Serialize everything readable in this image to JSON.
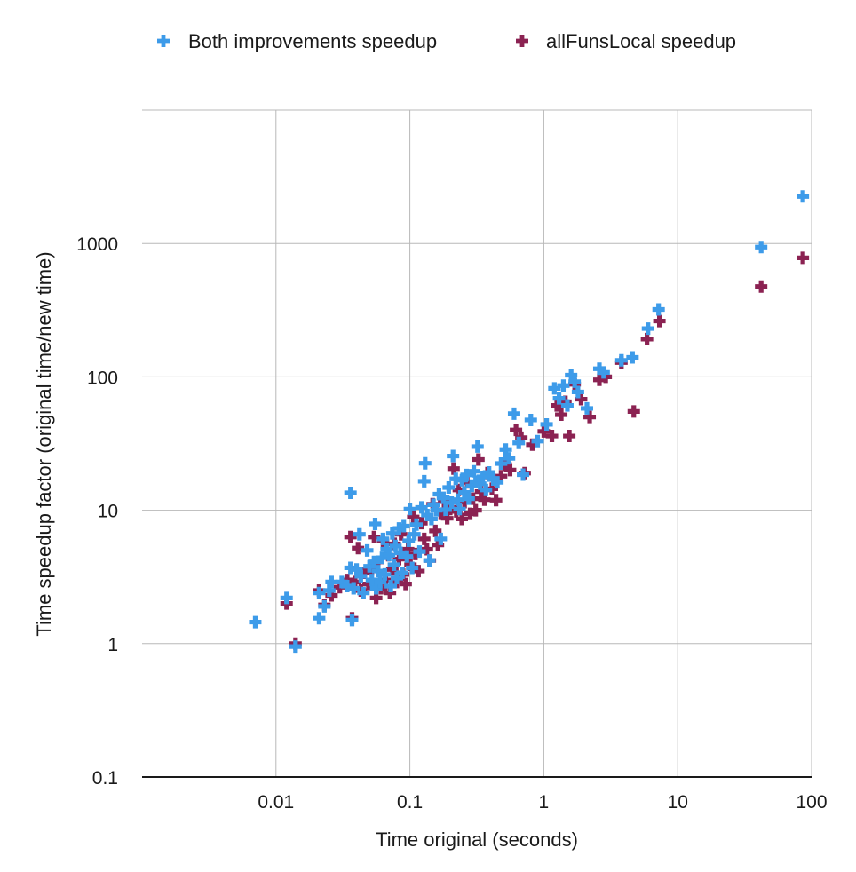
{
  "chart_data": {
    "type": "scatter",
    "title": "",
    "xlabel": "Time original (seconds)",
    "ylabel": "Time speedup factor (original time/new time)",
    "xscale": "log",
    "yscale": "log",
    "xlim": [
      0.001,
      100
    ],
    "ylim": [
      0.1,
      10000
    ],
    "x_ticks": [
      {
        "value": 0.01,
        "label": "0.01"
      },
      {
        "value": 0.1,
        "label": "0.1"
      },
      {
        "value": 1,
        "label": "1"
      },
      {
        "value": 10,
        "label": "10"
      },
      {
        "value": 100,
        "label": "100"
      }
    ],
    "y_ticks": [
      {
        "value": 0.1,
        "label": "0.1"
      },
      {
        "value": 1,
        "label": "1"
      },
      {
        "value": 10,
        "label": "10"
      },
      {
        "value": 100,
        "label": "100"
      },
      {
        "value": 1000,
        "label": "1000"
      }
    ],
    "grid": true,
    "legend_position": "top",
    "marker": "plus",
    "series": [
      {
        "name": "Both improvements speedup",
        "color": "#3d9be9",
        "points": [
          [
            0.007,
            1.45
          ],
          [
            0.012,
            2.2
          ],
          [
            0.014,
            0.95
          ],
          [
            0.021,
            1.55
          ],
          [
            0.021,
            2.4
          ],
          [
            0.023,
            1.9
          ],
          [
            0.025,
            2.5
          ],
          [
            0.026,
            2.9
          ],
          [
            0.031,
            2.9
          ],
          [
            0.034,
            2.7
          ],
          [
            0.036,
            3.7
          ],
          [
            0.036,
            13.5
          ],
          [
            0.037,
            1.5
          ],
          [
            0.038,
            2.6
          ],
          [
            0.04,
            3.6
          ],
          [
            0.042,
            6.6
          ],
          [
            0.043,
            3.2
          ],
          [
            0.045,
            2.4
          ],
          [
            0.048,
            5.0
          ],
          [
            0.05,
            3.8
          ],
          [
            0.052,
            3.0
          ],
          [
            0.054,
            4.1
          ],
          [
            0.055,
            7.9
          ],
          [
            0.056,
            2.6
          ],
          [
            0.058,
            3.5
          ],
          [
            0.06,
            2.9
          ],
          [
            0.062,
            4.4
          ],
          [
            0.063,
            6.1
          ],
          [
            0.065,
            3.3
          ],
          [
            0.067,
            5.1
          ],
          [
            0.07,
            4.6
          ],
          [
            0.072,
            2.7
          ],
          [
            0.074,
            6.7
          ],
          [
            0.076,
            3.9
          ],
          [
            0.078,
            5.4
          ],
          [
            0.08,
            3.1
          ],
          [
            0.083,
            7.3
          ],
          [
            0.085,
            4.8
          ],
          [
            0.088,
            3.4
          ],
          [
            0.09,
            7.6
          ],
          [
            0.095,
            4.5
          ],
          [
            0.098,
            5.9
          ],
          [
            0.1,
            10.2
          ],
          [
            0.104,
            3.7
          ],
          [
            0.108,
            6.6
          ],
          [
            0.112,
            7.8
          ],
          [
            0.118,
            4.9
          ],
          [
            0.122,
            10.5
          ],
          [
            0.128,
            16.5
          ],
          [
            0.13,
            22.5
          ],
          [
            0.135,
            9.2
          ],
          [
            0.14,
            4.2
          ],
          [
            0.145,
            8.6
          ],
          [
            0.15,
            11.0
          ],
          [
            0.158,
            10.0
          ],
          [
            0.165,
            13.2
          ],
          [
            0.17,
            6.1
          ],
          [
            0.178,
            12.4
          ],
          [
            0.185,
            10.1
          ],
          [
            0.195,
            14.8
          ],
          [
            0.205,
            11.4
          ],
          [
            0.21,
            25.5
          ],
          [
            0.22,
            17.2
          ],
          [
            0.228,
            12.0
          ],
          [
            0.235,
            10.2
          ],
          [
            0.245,
            16.8
          ],
          [
            0.255,
            13.6
          ],
          [
            0.265,
            18.4
          ],
          [
            0.275,
            12.2
          ],
          [
            0.29,
            15.2
          ],
          [
            0.3,
            19.6
          ],
          [
            0.31,
            16.4
          ],
          [
            0.32,
            30.0
          ],
          [
            0.335,
            15.8
          ],
          [
            0.35,
            17.8
          ],
          [
            0.37,
            14.2
          ],
          [
            0.39,
            19.2
          ],
          [
            0.42,
            17.0
          ],
          [
            0.45,
            16.2
          ],
          [
            0.48,
            22.4
          ],
          [
            0.52,
            28.5
          ],
          [
            0.55,
            24.5
          ],
          [
            0.6,
            53.0
          ],
          [
            0.65,
            32.0
          ],
          [
            0.7,
            18.5
          ],
          [
            0.8,
            47.5
          ],
          [
            0.9,
            33.0
          ],
          [
            1.05,
            44.0
          ],
          [
            1.2,
            82.0
          ],
          [
            1.3,
            69.0
          ],
          [
            1.4,
            86.0
          ],
          [
            1.5,
            61.0
          ],
          [
            1.6,
            103.0
          ],
          [
            1.7,
            92.0
          ],
          [
            1.8,
            77.0
          ],
          [
            2.1,
            58.0
          ],
          [
            2.6,
            115.0
          ],
          [
            2.8,
            108.0
          ],
          [
            3.8,
            133.0
          ],
          [
            4.6,
            140.0
          ],
          [
            6.0,
            230.0
          ],
          [
            7.2,
            320.0
          ],
          [
            42.0,
            940.0
          ],
          [
            86.0,
            2250.0
          ]
        ]
      },
      {
        "name": "allFunsLocal speedup",
        "color": "#8b2252",
        "points": [
          [
            0.012,
            2.0
          ],
          [
            0.014,
            1.0
          ],
          [
            0.021,
            2.5
          ],
          [
            0.023,
            1.95
          ],
          [
            0.026,
            2.3
          ],
          [
            0.03,
            2.65
          ],
          [
            0.034,
            3.0
          ],
          [
            0.036,
            6.3
          ],
          [
            0.037,
            1.55
          ],
          [
            0.039,
            2.9
          ],
          [
            0.041,
            5.2
          ],
          [
            0.043,
            2.5
          ],
          [
            0.046,
            3.4
          ],
          [
            0.049,
            2.8
          ],
          [
            0.052,
            3.6
          ],
          [
            0.054,
            6.3
          ],
          [
            0.056,
            2.2
          ],
          [
            0.058,
            4.1
          ],
          [
            0.061,
            2.6
          ],
          [
            0.063,
            5.9
          ],
          [
            0.066,
            3.0
          ],
          [
            0.069,
            4.6
          ],
          [
            0.071,
            2.4
          ],
          [
            0.074,
            3.6
          ],
          [
            0.077,
            5.6
          ],
          [
            0.08,
            2.9
          ],
          [
            0.083,
            4.3
          ],
          [
            0.086,
            6.6
          ],
          [
            0.089,
            3.3
          ],
          [
            0.093,
            2.8
          ],
          [
            0.097,
            5.1
          ],
          [
            0.101,
            3.9
          ],
          [
            0.106,
            8.9
          ],
          [
            0.11,
            4.7
          ],
          [
            0.116,
            3.5
          ],
          [
            0.122,
            8.0
          ],
          [
            0.128,
            6.1
          ],
          [
            0.134,
            5.1
          ],
          [
            0.141,
            4.2
          ],
          [
            0.148,
            11.1
          ],
          [
            0.155,
            7.0
          ],
          [
            0.162,
            5.5
          ],
          [
            0.17,
            9.4
          ],
          [
            0.18,
            11.6
          ],
          [
            0.19,
            8.7
          ],
          [
            0.2,
            10.2
          ],
          [
            0.212,
            20.5
          ],
          [
            0.222,
            9.8
          ],
          [
            0.232,
            14.2
          ],
          [
            0.244,
            8.6
          ],
          [
            0.256,
            11.5
          ],
          [
            0.268,
            16.2
          ],
          [
            0.282,
            9.4
          ],
          [
            0.296,
            12.2
          ],
          [
            0.31,
            10.0
          ],
          [
            0.325,
            24.0
          ],
          [
            0.34,
            13.8
          ],
          [
            0.36,
            12.0
          ],
          [
            0.38,
            19.0
          ],
          [
            0.41,
            14.5
          ],
          [
            0.44,
            11.9
          ],
          [
            0.48,
            18.0
          ],
          [
            0.52,
            22.0
          ],
          [
            0.56,
            20.0
          ],
          [
            0.62,
            40.0
          ],
          [
            0.68,
            35.0
          ],
          [
            0.72,
            19.0
          ],
          [
            0.82,
            31.0
          ],
          [
            1.0,
            39.0
          ],
          [
            1.15,
            36.0
          ],
          [
            1.25,
            61.0
          ],
          [
            1.35,
            52.0
          ],
          [
            1.45,
            65.0
          ],
          [
            1.55,
            36.0
          ],
          [
            1.7,
            88.0
          ],
          [
            1.9,
            68.0
          ],
          [
            2.2,
            50.0
          ],
          [
            2.6,
            95.0
          ],
          [
            2.9,
            100.0
          ],
          [
            3.8,
            128.0
          ],
          [
            4.7,
            55.0
          ],
          [
            5.9,
            192.0
          ],
          [
            7.3,
            262.0
          ],
          [
            42.0,
            475.0
          ],
          [
            86.0,
            780.0
          ]
        ]
      }
    ]
  }
}
